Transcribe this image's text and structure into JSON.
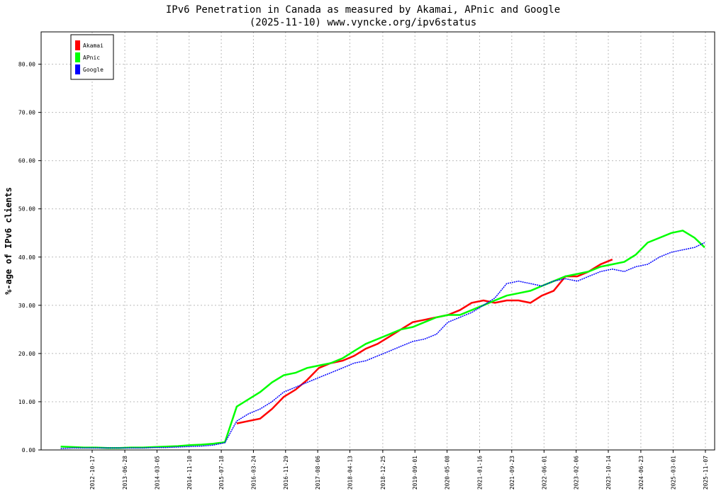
{
  "chart_data": {
    "type": "line",
    "title": "IPv6 Penetration in Canada as measured by Akamai, APnic and Google",
    "subtitle": "(2025-11-10) www.vyncke.org/ipv6status",
    "y_label": "%-age of IPv6 clients",
    "xlim": [
      "2011-09-16",
      "2026-01-18"
    ],
    "ylim": [
      0,
      86.7
    ],
    "xticks": [
      "2012-10-17",
      "2013-06-28",
      "2014-03-05",
      "2014-11-10",
      "2015-07-18",
      "2016-03-24",
      "2016-11-29",
      "2017-08-06",
      "2018-04-13",
      "2018-12-25",
      "2019-09-01",
      "2020-05-08",
      "2021-01-16",
      "2021-09-23",
      "2022-06-01",
      "2023-02-06",
      "2023-10-14",
      "2024-06-23",
      "2025-03-01",
      "2025-11-07"
    ],
    "yticks": [
      {
        "value": 0,
        "label": "0.00"
      },
      {
        "value": 10,
        "label": "10.00"
      },
      {
        "value": 20,
        "label": "20.00"
      },
      {
        "value": 30,
        "label": "30.00"
      },
      {
        "value": 40,
        "label": "40.00"
      },
      {
        "value": 50,
        "label": "50.00"
      },
      {
        "value": 60,
        "label": "60.00"
      },
      {
        "value": 70,
        "label": "70.00"
      },
      {
        "value": 80,
        "label": "80.00"
      }
    ],
    "grid": true,
    "legend": "upper left",
    "x": [
      "2012-02-15",
      "2012-05-15",
      "2012-08-15",
      "2012-11-15",
      "2013-02-15",
      "2013-05-15",
      "2013-08-15",
      "2013-11-15",
      "2014-02-15",
      "2014-05-15",
      "2014-08-15",
      "2014-11-15",
      "2015-02-15",
      "2015-05-15",
      "2015-08-15",
      "2015-11-15",
      "2016-02-15",
      "2016-05-15",
      "2016-08-15",
      "2016-11-15",
      "2017-02-15",
      "2017-05-15",
      "2017-08-15",
      "2017-11-15",
      "2018-02-15",
      "2018-05-15",
      "2018-08-15",
      "2018-11-15",
      "2019-02-15",
      "2019-05-15",
      "2019-08-15",
      "2019-11-15",
      "2020-02-15",
      "2020-05-15",
      "2020-08-15",
      "2020-11-15",
      "2021-02-15",
      "2021-05-15",
      "2021-08-15",
      "2021-11-15",
      "2022-02-15",
      "2022-05-15",
      "2022-08-15",
      "2022-11-15",
      "2023-02-15",
      "2023-05-15",
      "2023-08-15",
      "2023-11-15",
      "2024-02-15",
      "2024-05-15",
      "2024-08-15",
      "2024-11-15",
      "2025-02-15",
      "2025-05-15",
      "2025-08-15",
      "2025-11-01"
    ],
    "series": [
      {
        "name": "Akamai",
        "color": "#ff0000",
        "values": [
          null,
          null,
          null,
          null,
          null,
          null,
          null,
          null,
          null,
          null,
          null,
          null,
          null,
          null,
          null,
          5.5,
          6.0,
          6.5,
          8.5,
          11.0,
          12.5,
          14.5,
          17.0,
          18.0,
          18.5,
          19.5,
          21.0,
          22.0,
          23.5,
          25.0,
          26.5,
          27.0,
          27.5,
          28.0,
          29.0,
          30.5,
          31.0,
          30.5,
          31.0,
          31.0,
          30.5,
          32.0,
          33.0,
          36.0,
          36.0,
          37.0,
          38.5,
          39.5,
          null,
          null,
          null,
          null,
          null,
          null,
          null,
          null
        ]
      },
      {
        "name": "APnic",
        "color": "#00ff00",
        "values": [
          0.7,
          0.6,
          0.5,
          0.5,
          0.4,
          0.4,
          0.5,
          0.5,
          0.6,
          0.7,
          0.8,
          1.0,
          1.1,
          1.3,
          1.6,
          9.0,
          10.5,
          12.0,
          14.0,
          15.5,
          16.0,
          17.0,
          17.5,
          18.0,
          19.0,
          20.5,
          22.0,
          23.0,
          24.0,
          25.0,
          25.5,
          26.5,
          27.5,
          28.0,
          28.0,
          29.0,
          30.0,
          31.0,
          32.0,
          32.5,
          33.0,
          34.0,
          35.0,
          36.0,
          36.5,
          37.0,
          38.0,
          38.5,
          39.0,
          40.5,
          43.0,
          44.0,
          45.0,
          45.5,
          44.0,
          42.0
        ]
      },
      {
        "name": "Google",
        "color": "#0000ff",
        "values": [
          0.3,
          0.4,
          0.4,
          0.4,
          0.4,
          0.4,
          0.4,
          0.4,
          0.5,
          0.5,
          0.6,
          0.7,
          0.8,
          1.0,
          1.5,
          6.0,
          7.5,
          8.5,
          10.0,
          12.0,
          13.0,
          14.0,
          15.0,
          16.0,
          17.0,
          18.0,
          18.5,
          19.5,
          20.5,
          21.5,
          22.5,
          23.0,
          24.0,
          26.5,
          27.5,
          28.5,
          30.0,
          31.5,
          34.5,
          35.0,
          34.5,
          34.0,
          35.0,
          35.5,
          35.0,
          36.0,
          37.0,
          37.5,
          37.0,
          38.0,
          38.5,
          40.0,
          41.0,
          41.5,
          42.0,
          43.0
        ]
      }
    ]
  }
}
